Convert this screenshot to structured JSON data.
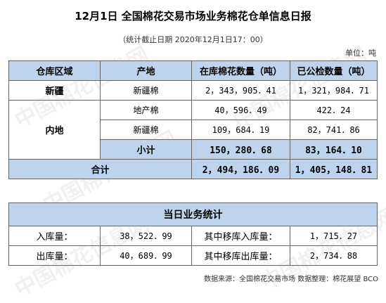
{
  "title": "12月1日 全国棉花交易市场业务棉花仓单信息日报",
  "subtitle": "（统计截止日期 2020年12月1日17：00）",
  "unit": "单位：吨",
  "main_table": {
    "headers": [
      "仓库区域",
      "产地",
      "在库棉花数量（吨）",
      "已公检数量（吨）"
    ],
    "xinjiang": {
      "region": "新疆",
      "origin": "新疆棉",
      "in_stock": "2，343，905．41",
      "inspected": "1，321，984．71"
    },
    "neidi": {
      "region": "内地",
      "rows": [
        {
          "origin": "地产棉",
          "in_stock": "40，596．49",
          "inspected": "422．24"
        },
        {
          "origin": "新疆棉",
          "in_stock": "109，684．19",
          "inspected": "82，741．86"
        }
      ],
      "subtotal": {
        "label": "小计",
        "in_stock": "150，280．68",
        "inspected": "83，164．10"
      }
    },
    "total": {
      "label": "合计",
      "in_stock": "2，494，186．09",
      "inspected": "1，405，148．81"
    }
  },
  "daily_table": {
    "title": "当日业务统计",
    "rows": [
      {
        "label1": "入库量：",
        "value1": "38，522．99",
        "label2": "其中移库入库量：",
        "value2": "1，715．27"
      },
      {
        "label1": "出库量：",
        "value1": "40，689．99",
        "label2": "其中移库出库量：",
        "value2": "2，734．88"
      }
    ]
  },
  "footer": "数据来源：全国棉花交易市场  数据整理：棉花展望 BCO",
  "watermark": "中国棉花信息网"
}
